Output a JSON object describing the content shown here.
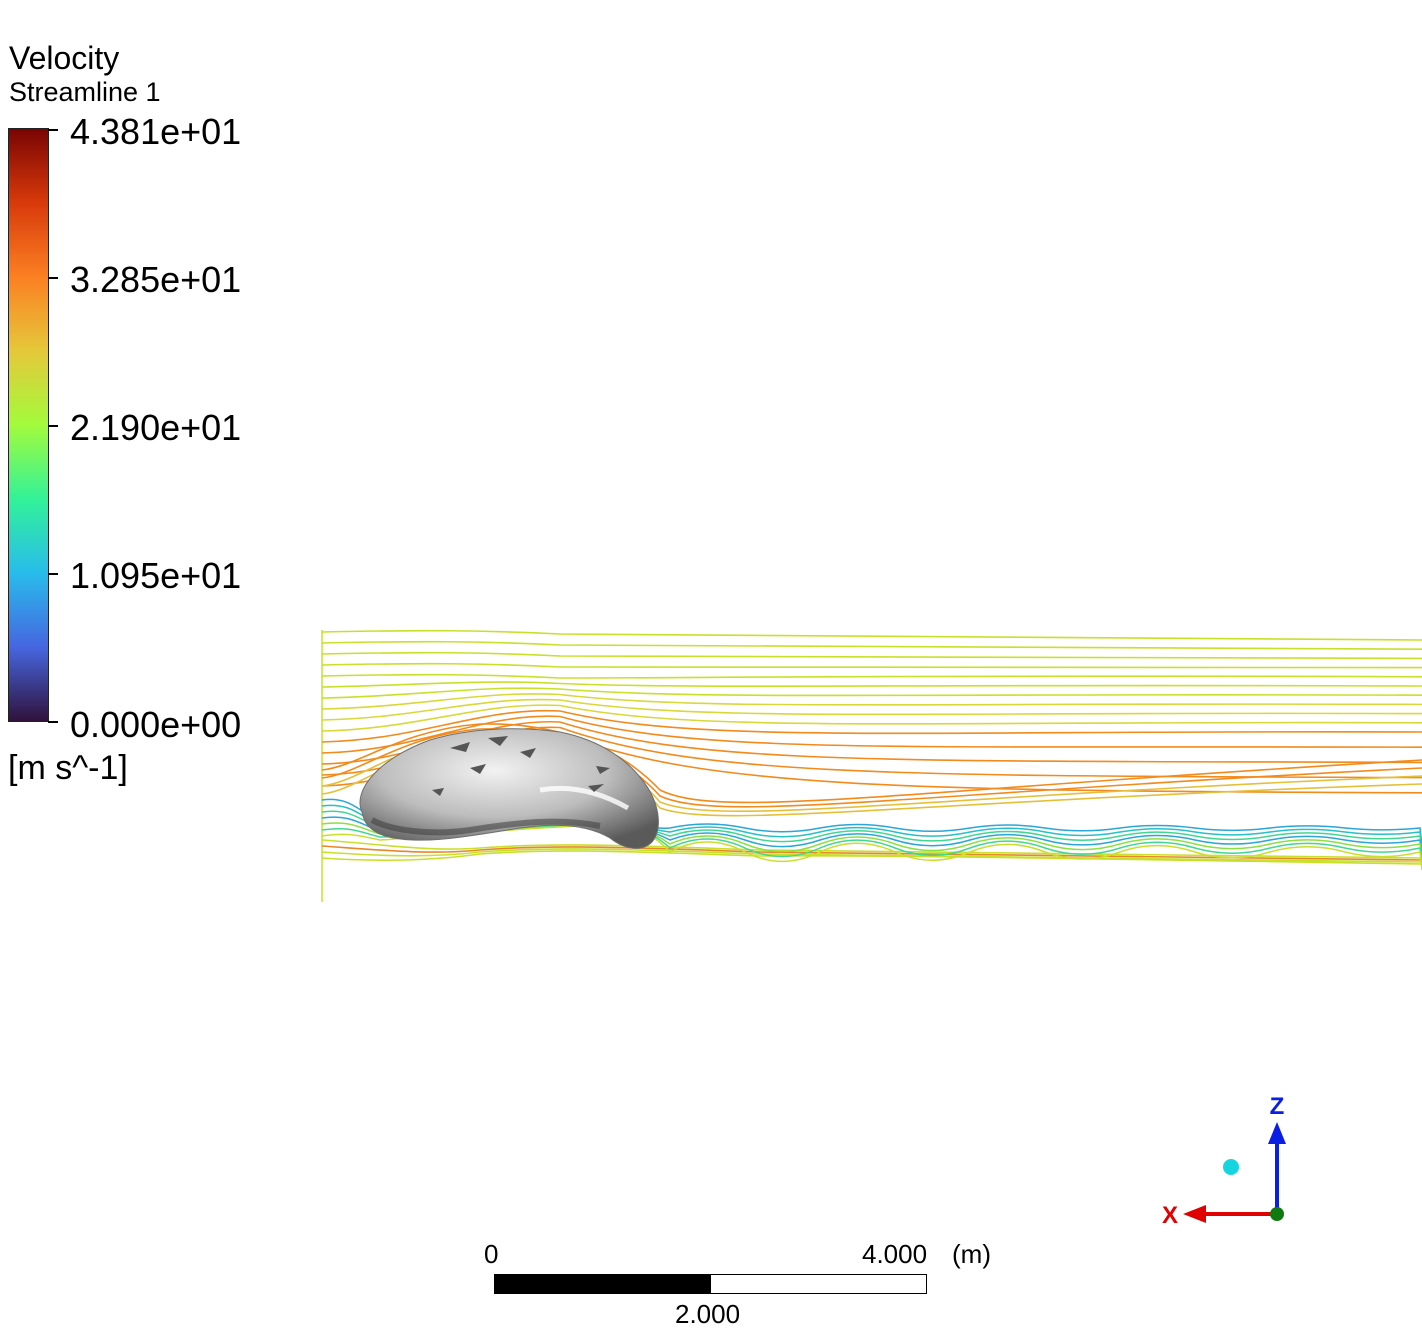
{
  "legend": {
    "title": "Velocity",
    "subtitle": "Streamline 1",
    "unit": "[m s^-1]",
    "ticks": [
      "4.381e+01",
      "3.285e+01",
      "2.190e+01",
      "1.095e+01",
      "0.000e+00"
    ],
    "colormap": [
      "#7a0403",
      "#d83a0b",
      "#fb8022",
      "#e5c83a",
      "#a3fb3c",
      "#32f298",
      "#28bceb",
      "#4666e0",
      "#30123b"
    ]
  },
  "scale": {
    "start": "0",
    "end": "4.000",
    "unit": "(m)",
    "mid": "2.000"
  },
  "axes": {
    "x_label": "X",
    "z_label": "Z",
    "x_color": "#e00000",
    "z_color": "#0a1ee6",
    "y_color": "#0f7a0f",
    "view_dot_color": "#15d6e0"
  },
  "colors": {
    "freestream": "#c8e02a",
    "fast": "#f28a1c",
    "slow": "#2aa6d8",
    "body": "#b8b8b8"
  }
}
